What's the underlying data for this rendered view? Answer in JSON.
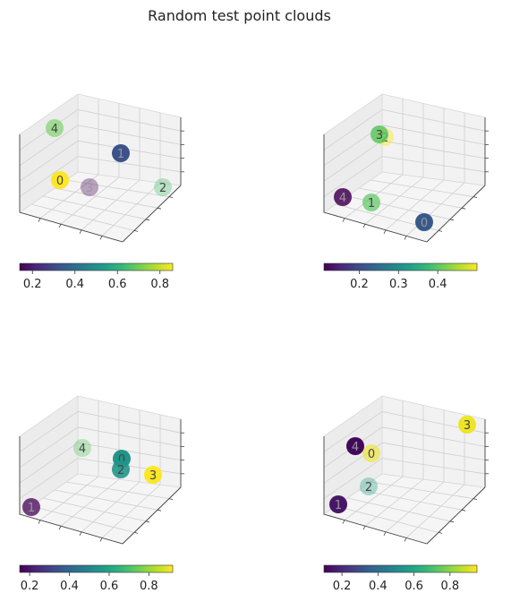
{
  "figure": {
    "title": "Random test point clouds"
  },
  "colormap": {
    "name": "viridis",
    "stops": [
      "#440154",
      "#482878",
      "#3e4a89",
      "#31688e",
      "#26828e",
      "#1f9e89",
      "#35b779",
      "#6ece58",
      "#b5de2b",
      "#fde725"
    ]
  },
  "chart_data": [
    {
      "type": "scatter3d",
      "colorbar": {
        "min": 0.14,
        "max": 0.86,
        "ticks": [
          "0.2",
          "0.4",
          "0.6",
          "0.8"
        ]
      },
      "points": [
        {
          "label": "0",
          "value": 0.86
        },
        {
          "label": "1",
          "value": 0.32
        },
        {
          "label": "2",
          "value": 0.65
        },
        {
          "label": "3",
          "value": 0.15
        },
        {
          "label": "4",
          "value": 0.7
        }
      ]
    },
    {
      "type": "scatter3d",
      "colorbar": {
        "min": 0.11,
        "max": 0.5,
        "ticks": [
          "0.2",
          "0.3",
          "0.4"
        ]
      },
      "points": [
        {
          "label": "0",
          "value": 0.22
        },
        {
          "label": "1",
          "value": 0.4
        },
        {
          "label": "2",
          "value": 0.5
        },
        {
          "label": "3",
          "value": 0.4
        },
        {
          "label": "4",
          "value": 0.11
        }
      ]
    },
    {
      "type": "scatter3d",
      "colorbar": {
        "min": 0.15,
        "max": 0.92,
        "ticks": [
          "0.2",
          "0.4",
          "0.6",
          "0.8"
        ]
      },
      "points": [
        {
          "label": "0",
          "value": 0.55
        },
        {
          "label": "1",
          "value": 0.15
        },
        {
          "label": "2",
          "value": 0.55
        },
        {
          "label": "3",
          "value": 0.92
        },
        {
          "label": "4",
          "value": 0.72
        }
      ]
    },
    {
      "type": "scatter3d",
      "colorbar": {
        "min": 0.1,
        "max": 0.95,
        "ticks": [
          "0.2",
          "0.4",
          "0.6",
          "0.8"
        ]
      },
      "points": [
        {
          "label": "0",
          "value": 0.93
        },
        {
          "label": "1",
          "value": 0.15
        },
        {
          "label": "2",
          "value": 0.58
        },
        {
          "label": "3",
          "value": 0.93
        },
        {
          "label": "4",
          "value": 0.12
        }
      ]
    }
  ]
}
